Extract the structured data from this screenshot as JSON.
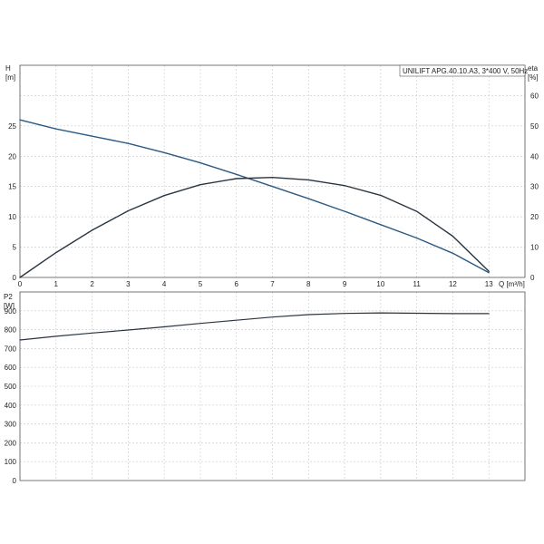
{
  "chart_data": [
    {
      "type": "line",
      "title": "UNILIFT APG.40.10.A3, 3*400 V, 50Hz",
      "xlabel": "Q [m³/h]",
      "ylabel": "H\n[m]",
      "ylabel_right": "eta\n[%]",
      "xlim": [
        0,
        14
      ],
      "ylim": [
        0,
        35
      ],
      "ylim_right": [
        0,
        70
      ],
      "x_ticks": [
        "0",
        "1",
        "2",
        "3",
        "4",
        "5",
        "6",
        "7",
        "8",
        "9",
        "10",
        "11",
        "12",
        "13"
      ],
      "y_ticks": [
        "0",
        "5",
        "10",
        "15",
        "20",
        "25"
      ],
      "y_ticks_right": [
        "0",
        "10",
        "20",
        "30",
        "40",
        "50",
        "60"
      ],
      "grid": true,
      "series": [
        {
          "name": "",
          "axis": "left",
          "color": "#2b5a84",
          "x": [
            0,
            1,
            2,
            3,
            4,
            5,
            6,
            7,
            8,
            9,
            10,
            11,
            12,
            13
          ],
          "y": [
            26,
            24.5,
            23.3,
            22.1,
            20.6,
            18.9,
            17.0,
            15.0,
            13.0,
            10.9,
            8.7,
            6.5,
            4.0,
            0.8
          ]
        },
        {
          "name": "",
          "axis": "right",
          "color": "#2b3540",
          "x": [
            0,
            1,
            2,
            3,
            4,
            5,
            6,
            7,
            8,
            9,
            10,
            11,
            12,
            13
          ],
          "y": [
            0,
            8.2,
            15.6,
            22.0,
            27.0,
            30.6,
            32.6,
            33.0,
            32.2,
            30.3,
            27.1,
            21.8,
            13.6,
            2.0
          ]
        }
      ]
    },
    {
      "type": "line",
      "title": "",
      "xlabel": "",
      "ylabel": "P2\n[W]",
      "xlim": [
        0,
        14
      ],
      "ylim": [
        0,
        1000
      ],
      "y_ticks": [
        "0",
        "100",
        "200",
        "300",
        "400",
        "500",
        "600",
        "700",
        "800",
        "900"
      ],
      "grid": true,
      "series": [
        {
          "name": "",
          "axis": "left",
          "color": "#2b3540",
          "x": [
            0,
            1,
            2,
            3,
            4,
            5,
            6,
            7,
            8,
            9,
            10,
            11,
            12,
            13
          ],
          "y": [
            745,
            765,
            782,
            798,
            815,
            833,
            850,
            867,
            880,
            886,
            889,
            887,
            885,
            885
          ]
        }
      ]
    }
  ]
}
